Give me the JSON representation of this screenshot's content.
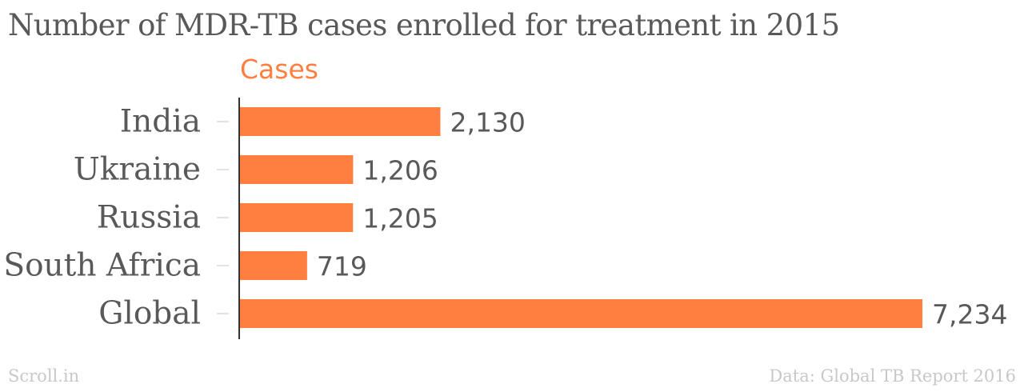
{
  "chart_data": {
    "type": "bar",
    "orientation": "horizontal",
    "title": "Number of MDR-TB cases enrolled for treatment in 2015",
    "categories": [
      "India",
      "Ukraine",
      "Russia",
      "South Africa",
      "Global"
    ],
    "series": [
      {
        "name": "Cases",
        "values": [
          2130,
          1206,
          1205,
          719,
          7234
        ],
        "value_labels": [
          "2,130",
          "1,206",
          "1,205",
          "719",
          "7,234"
        ]
      }
    ],
    "xlim": [
      0,
      7234
    ],
    "grid": false,
    "bar_color": "#ff7f41"
  },
  "footer": {
    "source_brand": "Scroll.in",
    "credit": "Data: Global TB Report 2016"
  },
  "colors": {
    "accent": "#ff7f41",
    "text": "#595959",
    "footer_text": "#c8c8c8"
  }
}
